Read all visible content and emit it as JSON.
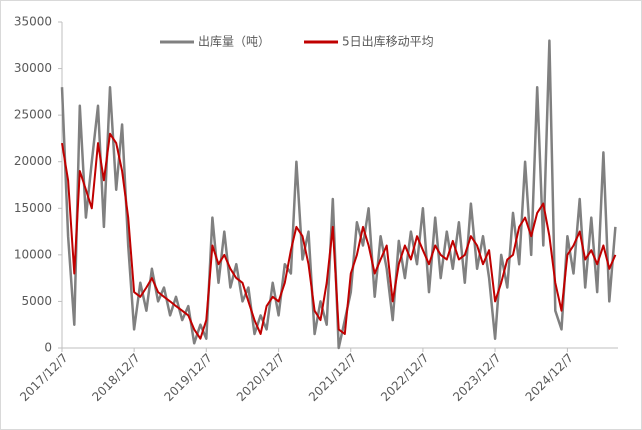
{
  "chart_data": {
    "type": "line",
    "legend": "top",
    "x": [
      "2017/12/7",
      "2018/1/7",
      "2018/2/7",
      "2018/3/7",
      "2018/4/7",
      "2018/5/7",
      "2018/6/7",
      "2018/7/7",
      "2018/8/7",
      "2018/9/7",
      "2018/10/7",
      "2018/11/7",
      "2018/12/7",
      "2019/1/7",
      "2019/2/7",
      "2019/3/7",
      "2019/4/7",
      "2019/5/7",
      "2019/6/7",
      "2019/7/7",
      "2019/8/7",
      "2019/9/7",
      "2019/10/7",
      "2019/11/7",
      "2019/12/7",
      "2020/1/7",
      "2020/2/7",
      "2020/3/7",
      "2020/4/7",
      "2020/5/7",
      "2020/6/7",
      "2020/7/7",
      "2020/8/7",
      "2020/9/7",
      "2020/10/7",
      "2020/11/7",
      "2020/12/7",
      "2021/1/7",
      "2021/2/7",
      "2021/3/7",
      "2021/4/7",
      "2021/5/7",
      "2021/6/7",
      "2021/7/7",
      "2021/8/7",
      "2021/9/7",
      "2021/10/7",
      "2021/11/7",
      "2021/12/7",
      "2022/1/7",
      "2022/2/7",
      "2022/3/7",
      "2022/4/7",
      "2022/5/7",
      "2022/6/7",
      "2022/7/7",
      "2022/8/7",
      "2022/9/7",
      "2022/10/7",
      "2022/11/7",
      "2022/12/7",
      "2023/1/7",
      "2023/2/7",
      "2023/3/7",
      "2023/4/7",
      "2023/5/7",
      "2023/6/7",
      "2023/7/7",
      "2023/8/7",
      "2023/9/7",
      "2023/10/7",
      "2023/11/7",
      "2023/12/7",
      "2024/1/7",
      "2024/2/7",
      "2024/3/7",
      "2024/4/7",
      "2024/5/7",
      "2024/6/7",
      "2024/7/7",
      "2024/8/7",
      "2024/9/7",
      "2024/10/7",
      "2024/11/7",
      "2024/12/7",
      "2025/1/7",
      "2025/2/7",
      "2025/3/7",
      "2025/4/7",
      "2025/5/7",
      "2025/6/7",
      "2025/7/7",
      "2025/8/7"
    ],
    "series": [
      {
        "name": "出库量（吨）",
        "color": "#808080",
        "values": [
          28000,
          12000,
          2500,
          26000,
          14000,
          20000,
          26000,
          13000,
          28000,
          17000,
          24000,
          11000,
          2000,
          7000,
          4000,
          8500,
          5000,
          6500,
          3500,
          5500,
          3000,
          4500,
          500,
          2500,
          1000,
          14000,
          7000,
          12500,
          6500,
          9000,
          5000,
          6500,
          1500,
          3500,
          2000,
          7000,
          3500,
          9000,
          8000,
          20000,
          9500,
          12500,
          1500,
          5000,
          2500,
          16000,
          0,
          3000,
          6000,
          13500,
          11000,
          15000,
          5500,
          12000,
          8500,
          3000,
          11500,
          7500,
          12500,
          9000,
          15000,
          6000,
          14000,
          7500,
          12500,
          8500,
          13500,
          7000,
          15500,
          8500,
          12000,
          7500,
          1000,
          10000,
          6500,
          14500,
          9000,
          20000,
          10000,
          28000,
          11000,
          33000,
          4000,
          2000,
          12000,
          8000,
          16000,
          6500,
          14000,
          6000,
          21000,
          5000,
          13000
        ]
      },
      {
        "name": "5日出库移动平均",
        "color": "#c00000",
        "values": [
          22000,
          18000,
          8000,
          19000,
          17000,
          15000,
          22000,
          18000,
          23000,
          22000,
          19000,
          14000,
          6000,
          5500,
          6500,
          7500,
          6000,
          5500,
          5000,
          4500,
          4000,
          3500,
          2000,
          1000,
          3000,
          11000,
          9000,
          10000,
          8500,
          7500,
          7000,
          5000,
          3000,
          1500,
          4500,
          5500,
          5000,
          7000,
          10500,
          13000,
          12000,
          9000,
          4000,
          3000,
          7000,
          13000,
          2000,
          1500,
          8000,
          10000,
          13000,
          11000,
          8000,
          9500,
          11000,
          5000,
          9000,
          11000,
          9500,
          12000,
          10500,
          9000,
          11000,
          10000,
          9500,
          11500,
          9500,
          10000,
          12000,
          11000,
          9000,
          10500,
          5000,
          7000,
          9500,
          10000,
          13000,
          14000,
          12000,
          14500,
          15500,
          12000,
          7000,
          4000,
          10000,
          11000,
          12500,
          9500,
          10500,
          9000,
          11000,
          8500,
          10000
        ]
      }
    ],
    "xlim": [
      "2017/12/7",
      "2025/8/20"
    ],
    "xticks": [
      "2017/12/7",
      "2018/12/7",
      "2019/12/7",
      "2020/12/7",
      "2021/12/7",
      "2022/12/7",
      "2023/12/7",
      "2024/12/7"
    ],
    "ylim": [
      0,
      35000
    ],
    "yticks": [
      0,
      5000,
      10000,
      15000,
      20000,
      25000,
      30000,
      35000
    ]
  }
}
